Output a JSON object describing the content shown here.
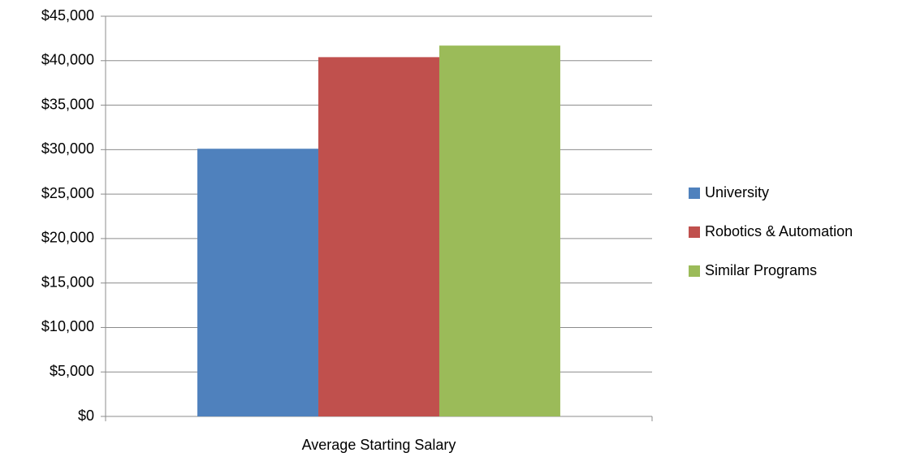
{
  "chart_data": {
    "type": "bar",
    "categories": [
      "Average Starting Salary"
    ],
    "series": [
      {
        "name": "University",
        "color": "#4f81bd",
        "values": [
          30100
        ]
      },
      {
        "name": "Robotics & Automation",
        "color": "#c0504d",
        "values": [
          40400
        ]
      },
      {
        "name": "Similar Programs",
        "color": "#9bbb59",
        "values": [
          41700
        ]
      }
    ],
    "ylim": [
      0,
      45000
    ],
    "yticks": [
      {
        "value": 0,
        "label": "$0"
      },
      {
        "value": 5000,
        "label": "$5,000"
      },
      {
        "value": 10000,
        "label": "$10,000"
      },
      {
        "value": 15000,
        "label": "$15,000"
      },
      {
        "value": 20000,
        "label": "$20,000"
      },
      {
        "value": 25000,
        "label": "$25,000"
      },
      {
        "value": 30000,
        "label": "$30,000"
      },
      {
        "value": 35000,
        "label": "$35,000"
      },
      {
        "value": 40000,
        "label": "$40,000"
      },
      {
        "value": 45000,
        "label": "$45,000"
      }
    ],
    "grid": true,
    "legend": "right"
  }
}
